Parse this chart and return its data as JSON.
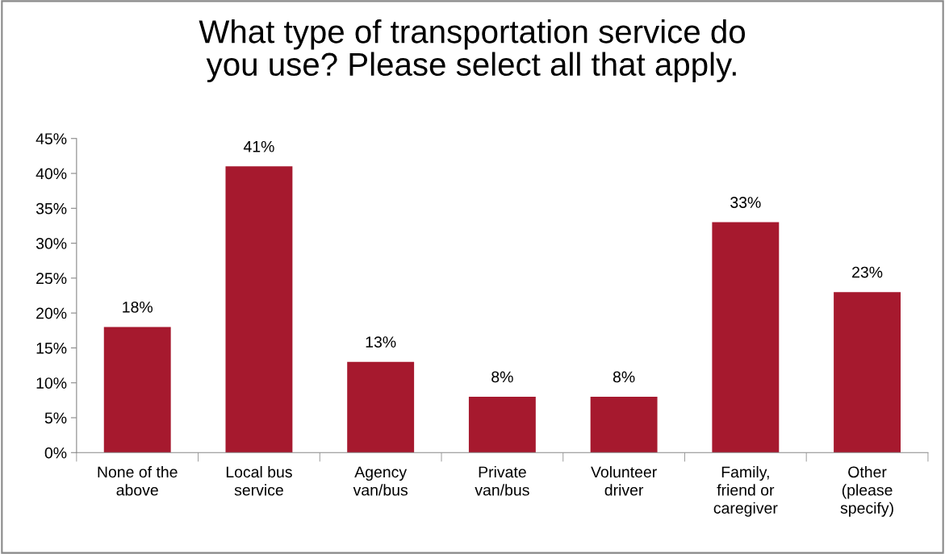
{
  "chart_data": {
    "type": "bar",
    "title": "What type of transportation service do\nyou use? Please select all that apply.",
    "categories": [
      "None of the\nabove",
      "Local bus\nservice",
      "Agency\nvan/bus",
      "Private\nvan/bus",
      "Volunteer\ndriver",
      "Family,\nfriend or\ncaregiver",
      "Other\n(please\nspecify)"
    ],
    "values": [
      18,
      41,
      13,
      8,
      8,
      33,
      23
    ],
    "value_labels": [
      "18%",
      "41%",
      "13%",
      "8%",
      "8%",
      "33%",
      "23%"
    ],
    "color": "#a6192e",
    "ylim": [
      0,
      45
    ],
    "yticks": [
      {
        "value": 0,
        "label": "0%"
      },
      {
        "value": 5,
        "label": "5%"
      },
      {
        "value": 10,
        "label": "10%"
      },
      {
        "value": 15,
        "label": "15%"
      },
      {
        "value": 20,
        "label": "20%"
      },
      {
        "value": 25,
        "label": "25%"
      },
      {
        "value": 30,
        "label": "30%"
      },
      {
        "value": 35,
        "label": "35%"
      },
      {
        "value": 40,
        "label": "40%"
      },
      {
        "value": 45,
        "label": "45%"
      }
    ],
    "grid": false,
    "legend": false
  }
}
